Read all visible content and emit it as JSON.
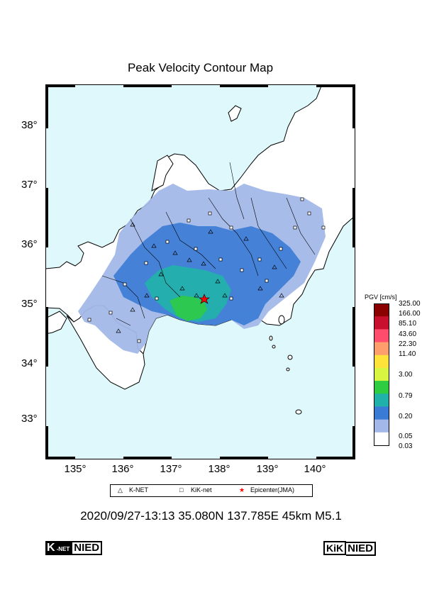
{
  "title": "Peak Velocity Contour Map",
  "lat_labels": [
    "38°",
    "37°",
    "36°",
    "35°",
    "34°",
    "33°"
  ],
  "lon_labels": [
    "135°",
    "136°",
    "137°",
    "138°",
    "139°",
    "140°"
  ],
  "legend": {
    "knet": "K-NET",
    "kiknet": "KiK-net",
    "epicenter": "Epicenter(JMA)"
  },
  "colorbar": {
    "title": "PGV [cm/s]",
    "labels": [
      "325.00",
      "166.00",
      "85.10",
      "43.60",
      "22.30",
      "11.40",
      "3.00",
      "0.79",
      "0.20",
      "0.05",
      "0.03"
    ],
    "colors": [
      "#8b0000",
      "#c8102e",
      "#ff4d6d",
      "#ff9e6d",
      "#ffe23a",
      "#d8f542",
      "#2ecc40",
      "#20b2aa",
      "#3a7bd5",
      "#a3b8e8",
      "#ffffff"
    ]
  },
  "caption": "2020/09/27-13:13 35.080N 137.785E 45km M5.1",
  "logos": {
    "left_k": "K",
    "left_net": "-NET",
    "left_nied": "NIED",
    "right_kik": "KiK",
    "right_nied": "NIED"
  },
  "colors": {
    "sea": "#dff8fb",
    "land": "#ffffff",
    "accent_star": "#ff0000"
  }
}
